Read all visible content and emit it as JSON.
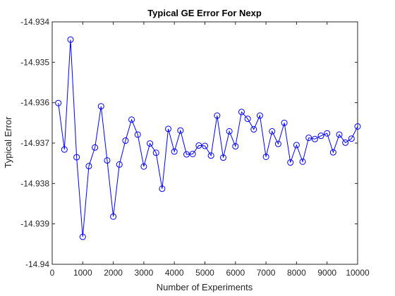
{
  "chart_data": {
    "type": "line",
    "title": "Typical GE Error For Nexp",
    "xlabel": "Number of Experiments",
    "ylabel": "Typical Error",
    "xlim": [
      0,
      10000
    ],
    "ylim": [
      -14.94,
      -14.934
    ],
    "x_ticks": [
      "0",
      "1000",
      "2000",
      "3000",
      "4000",
      "5000",
      "6000",
      "7000",
      "8000",
      "9000",
      "10000"
    ],
    "y_ticks": [
      "-14.94",
      "-14.939",
      "-14.938",
      "-14.937",
      "-14.936",
      "-14.935",
      "-14.934"
    ],
    "grid": false,
    "legend": "none",
    "series": [
      {
        "color": "#0000ff",
        "marker": "circle",
        "x": [
          200,
          400,
          600,
          800,
          1000,
          1200,
          1400,
          1600,
          1800,
          2000,
          2200,
          2400,
          2600,
          2800,
          3000,
          3200,
          3400,
          3600,
          3800,
          4000,
          4200,
          4400,
          4600,
          4800,
          5000,
          5200,
          5400,
          5600,
          5800,
          6000,
          6200,
          6400,
          6600,
          6800,
          7000,
          7200,
          7400,
          7600,
          7800,
          8000,
          8200,
          8400,
          8600,
          8800,
          9000,
          9200,
          9400,
          9600,
          9800,
          10000
        ],
        "y": [
          -14.93601,
          -14.93716,
          -14.93444,
          -14.93735,
          -14.93932,
          -14.93757,
          -14.93711,
          -14.93609,
          -14.93743,
          -14.93882,
          -14.93753,
          -14.93694,
          -14.93642,
          -14.93679,
          -14.93758,
          -14.93701,
          -14.93724,
          -14.93813,
          -14.93665,
          -14.93721,
          -14.93669,
          -14.93728,
          -14.93727,
          -14.93706,
          -14.93707,
          -14.93731,
          -14.93632,
          -14.93736,
          -14.93671,
          -14.93708,
          -14.93623,
          -14.9364,
          -14.93666,
          -14.93632,
          -14.93734,
          -14.93671,
          -14.93702,
          -14.9365,
          -14.93748,
          -14.93705,
          -14.93746,
          -14.93687,
          -14.9369,
          -14.93682,
          -14.93676,
          -14.93723,
          -14.93679,
          -14.93699,
          -14.93689,
          -14.93659
        ]
      }
    ]
  }
}
